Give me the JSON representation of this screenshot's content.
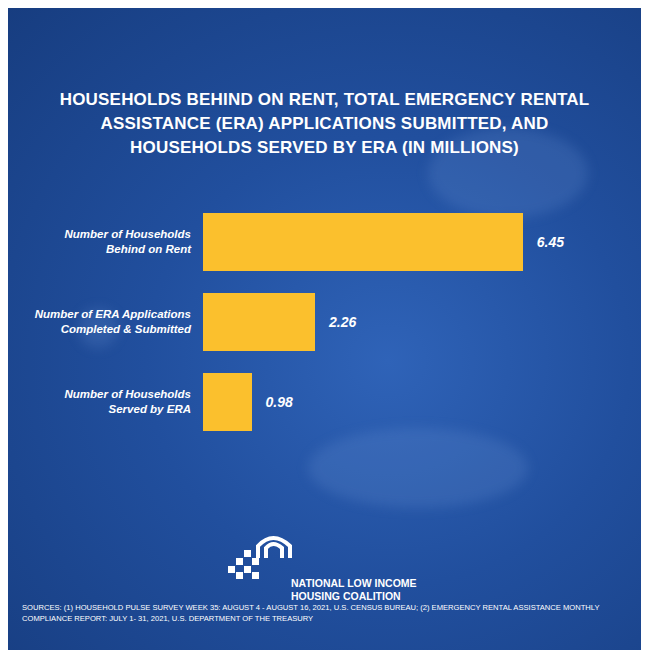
{
  "chart_data": {
    "type": "bar",
    "title": "HOUSEHOLDS BEHIND ON RENT, TOTAL EMERGENCY RENTAL ASSISTANCE (ERA) APPLICATIONS SUBMITTED, AND HOUSEHOLDS SERVED BY ERA (IN MILLIONS)",
    "categories": [
      "Number of Households Behind on Rent",
      "Number of ERA Applications Completed & Submitted",
      "Number of Households Served by ERA"
    ],
    "values": [
      6.45,
      2.26,
      0.98
    ],
    "color": "#fbc02d",
    "orientation": "horizontal",
    "data_labels": true,
    "tick_labels": false,
    "xlim": [
      0,
      7
    ],
    "logo": "NATIONAL LOW INCOME HOUSING COALITION",
    "source": "SOURCES: (1) HOUSEHOLD PULSE SURVEY WEEK 35: AUGUST 4 - AUGUST 16, 2021, U.S. CENSUS BUREAU; (2) EMERGENCY RENTAL ASSISTANCE MONTHLY COMPLIANCE REPORT: JULY 1- 31, 2021, U.S. DEPARTMENT OF THE TREASURY"
  }
}
